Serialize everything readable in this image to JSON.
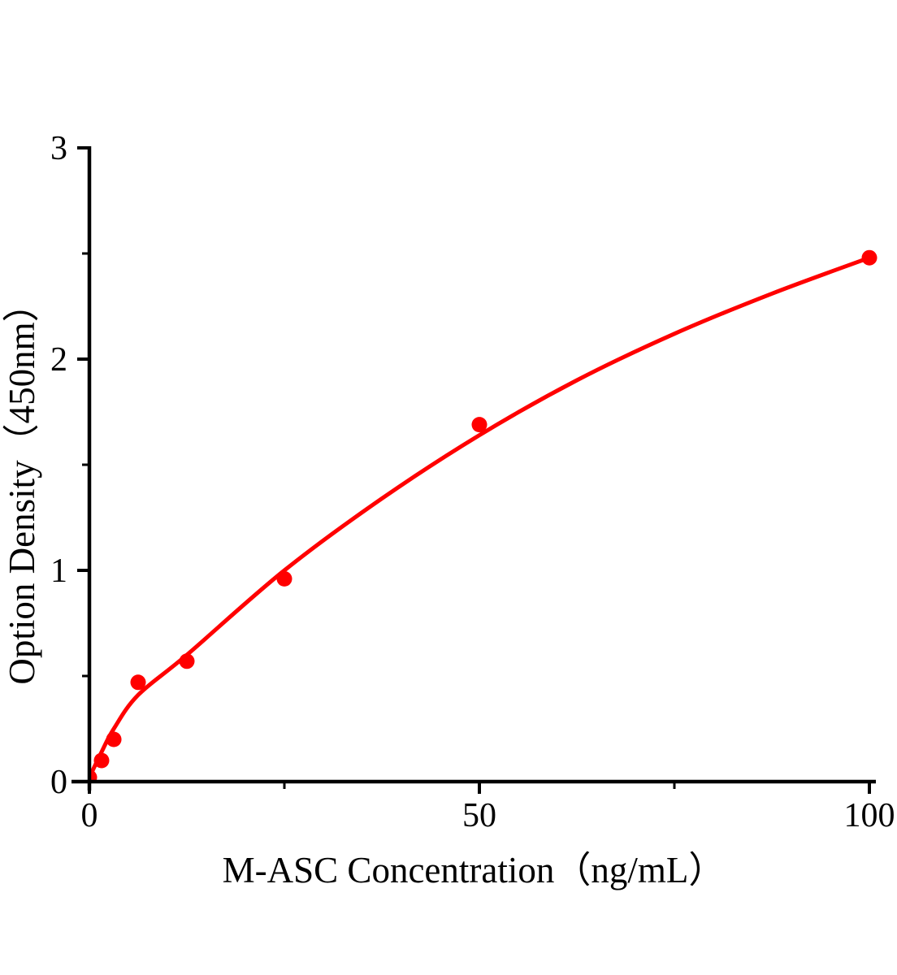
{
  "figure": {
    "background_color": "#ffffff",
    "axis_color": "#000000",
    "accent_color": "#ff0000"
  },
  "chart_data": {
    "type": "scatter",
    "title": "",
    "xlabel": "M-ASC Concentration（ng/mL）",
    "ylabel": "Option Density（450nm）",
    "xlim": [
      0,
      100
    ],
    "ylim": [
      0,
      3
    ],
    "grid": false,
    "legend_position": "none",
    "x_major_ticks": [
      0,
      50,
      100
    ],
    "x_major_tick_labels": [
      "0",
      "50",
      "100"
    ],
    "x_minor_ticks": [
      25,
      75
    ],
    "y_major_ticks": [
      0,
      1,
      2,
      3
    ],
    "y_major_tick_labels": [
      "0",
      "1",
      "2",
      "3"
    ],
    "y_minor_ticks": [
      0.5,
      1.5,
      2.5
    ],
    "series": [
      {
        "name": "standard-points",
        "kind": "scatter",
        "marker": "circle",
        "color": "#ff0000",
        "points": [
          [
            0,
            0.02
          ],
          [
            1.56,
            0.1
          ],
          [
            3.13,
            0.2
          ],
          [
            6.25,
            0.47
          ],
          [
            12.5,
            0.57
          ],
          [
            25,
            0.96
          ],
          [
            50,
            1.69
          ],
          [
            100,
            2.48
          ]
        ]
      },
      {
        "name": "fitted-curve",
        "kind": "line",
        "color": "#ff0000",
        "points": [
          [
            0,
            0.02
          ],
          [
            1.56,
            0.14
          ],
          [
            3.13,
            0.25
          ],
          [
            6.25,
            0.41
          ],
          [
            12.5,
            0.6
          ],
          [
            25,
            1.0
          ],
          [
            37.5,
            1.34
          ],
          [
            50,
            1.64
          ],
          [
            62.5,
            1.9
          ],
          [
            75,
            2.12
          ],
          [
            87.5,
            2.31
          ],
          [
            100,
            2.48
          ]
        ]
      }
    ]
  }
}
